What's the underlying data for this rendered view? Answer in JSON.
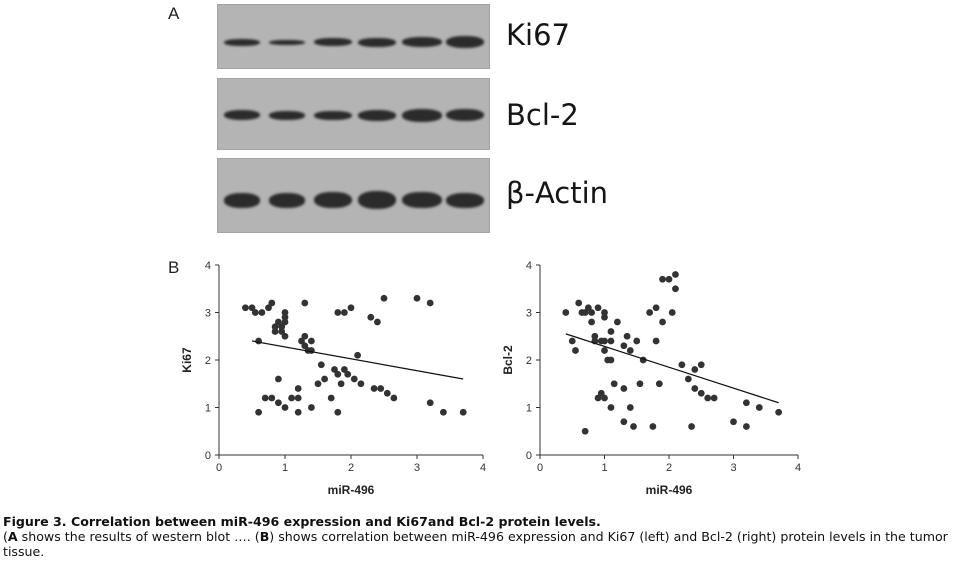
{
  "panel_a_label": "A",
  "panel_b_label": "B",
  "blots": [
    {
      "label": "Ki67"
    },
    {
      "label": "Bcl-2"
    },
    {
      "label": "β-Actin"
    }
  ],
  "caption": {
    "title": "Figure 3. Correlation between miR-496 expression and Ki67and Bcl-2 protein levels.",
    "a_ref": "A",
    "text_1": " shows the results of western blot …. (",
    "b_ref": "B",
    "text_2": ") shows correlation between miR-496 expression and Ki67 (left) and Bcl-2 (right) protein levels in the tumor tissue."
  },
  "chart_data": [
    {
      "type": "scatter",
      "xlabel": "miR-496",
      "ylabel": "Ki67",
      "xlim": [
        0,
        4
      ],
      "ylim": [
        0,
        4
      ],
      "xticks": [
        "0",
        "1",
        "2",
        "3",
        "4"
      ],
      "yticks": [
        "0",
        "1",
        "2",
        "3",
        "4"
      ],
      "points": [
        [
          0.4,
          3.1
        ],
        [
          0.5,
          3.1
        ],
        [
          0.55,
          3.0
        ],
        [
          0.6,
          2.4
        ],
        [
          0.6,
          0.9
        ],
        [
          0.65,
          3.0
        ],
        [
          0.7,
          1.2
        ],
        [
          0.75,
          3.1
        ],
        [
          0.8,
          3.2
        ],
        [
          0.8,
          1.2
        ],
        [
          0.85,
          2.7
        ],
        [
          0.85,
          2.6
        ],
        [
          0.9,
          2.8
        ],
        [
          0.9,
          1.6
        ],
        [
          0.9,
          1.1
        ],
        [
          0.95,
          2.7
        ],
        [
          0.95,
          2.6
        ],
        [
          1.0,
          3.0
        ],
        [
          1.0,
          2.9
        ],
        [
          1.0,
          2.8
        ],
        [
          1.0,
          2.5
        ],
        [
          1.0,
          1.0
        ],
        [
          1.1,
          1.2
        ],
        [
          1.2,
          1.4
        ],
        [
          1.2,
          1.2
        ],
        [
          1.2,
          0.9
        ],
        [
          1.25,
          2.4
        ],
        [
          1.3,
          2.5
        ],
        [
          1.3,
          2.3
        ],
        [
          1.3,
          3.2
        ],
        [
          1.35,
          2.2
        ],
        [
          1.4,
          2.4
        ],
        [
          1.4,
          2.2
        ],
        [
          1.4,
          1.0
        ],
        [
          1.5,
          1.5
        ],
        [
          1.55,
          1.9
        ],
        [
          1.6,
          1.6
        ],
        [
          1.7,
          1.2
        ],
        [
          1.75,
          1.8
        ],
        [
          1.8,
          3.0
        ],
        [
          1.8,
          0.9
        ],
        [
          1.8,
          1.7
        ],
        [
          1.85,
          1.5
        ],
        [
          1.9,
          3.0
        ],
        [
          1.9,
          1.8
        ],
        [
          1.95,
          1.7
        ],
        [
          2.0,
          3.1
        ],
        [
          2.05,
          1.6
        ],
        [
          2.1,
          2.1
        ],
        [
          2.15,
          1.5
        ],
        [
          2.3,
          2.9
        ],
        [
          2.35,
          1.4
        ],
        [
          2.4,
          2.8
        ],
        [
          2.45,
          1.4
        ],
        [
          2.5,
          3.3
        ],
        [
          2.55,
          1.3
        ],
        [
          2.65,
          1.2
        ],
        [
          3.0,
          3.3
        ],
        [
          3.2,
          3.2
        ],
        [
          3.2,
          1.1
        ],
        [
          3.4,
          0.9
        ],
        [
          3.7,
          0.9
        ]
      ],
      "fit": [
        [
          0.5,
          2.4
        ],
        [
          3.7,
          1.6
        ]
      ]
    },
    {
      "type": "scatter",
      "xlabel": "miR-496",
      "ylabel": "Bcl-2",
      "xlim": [
        0,
        4
      ],
      "ylim": [
        0,
        4
      ],
      "xticks": [
        "0",
        "1",
        "2",
        "3",
        "4"
      ],
      "yticks": [
        "0",
        "1",
        "2",
        "3",
        "4"
      ],
      "points": [
        [
          0.4,
          3.0
        ],
        [
          0.5,
          2.4
        ],
        [
          0.55,
          2.2
        ],
        [
          0.6,
          3.2
        ],
        [
          0.65,
          3.0
        ],
        [
          0.7,
          3.0
        ],
        [
          0.7,
          0.5
        ],
        [
          0.75,
          3.1
        ],
        [
          0.8,
          3.0
        ],
        [
          0.8,
          2.8
        ],
        [
          0.85,
          2.5
        ],
        [
          0.85,
          2.4
        ],
        [
          0.9,
          3.1
        ],
        [
          0.9,
          1.2
        ],
        [
          0.95,
          2.4
        ],
        [
          0.95,
          1.3
        ],
        [
          1.0,
          3.0
        ],
        [
          1.0,
          2.9
        ],
        [
          1.0,
          2.4
        ],
        [
          1.0,
          2.2
        ],
        [
          1.0,
          1.2
        ],
        [
          1.05,
          2.0
        ],
        [
          1.1,
          2.6
        ],
        [
          1.1,
          2.4
        ],
        [
          1.1,
          2.0
        ],
        [
          1.1,
          1.0
        ],
        [
          1.15,
          1.5
        ],
        [
          1.2,
          2.8
        ],
        [
          1.3,
          2.3
        ],
        [
          1.3,
          1.4
        ],
        [
          1.3,
          0.7
        ],
        [
          1.35,
          2.5
        ],
        [
          1.4,
          2.2
        ],
        [
          1.4,
          1.0
        ],
        [
          1.45,
          0.6
        ],
        [
          1.5,
          2.4
        ],
        [
          1.55,
          1.5
        ],
        [
          1.6,
          2.0
        ],
        [
          1.7,
          3.0
        ],
        [
          1.75,
          0.6
        ],
        [
          1.8,
          3.1
        ],
        [
          1.8,
          2.4
        ],
        [
          1.85,
          1.5
        ],
        [
          1.9,
          3.7
        ],
        [
          1.9,
          2.8
        ],
        [
          2.0,
          3.7
        ],
        [
          2.05,
          3.0
        ],
        [
          2.1,
          3.8
        ],
        [
          2.1,
          3.5
        ],
        [
          2.2,
          1.9
        ],
        [
          2.3,
          1.6
        ],
        [
          2.35,
          0.6
        ],
        [
          2.4,
          1.8
        ],
        [
          2.4,
          1.4
        ],
        [
          2.5,
          1.9
        ],
        [
          2.5,
          1.3
        ],
        [
          2.6,
          1.2
        ],
        [
          2.7,
          1.2
        ],
        [
          3.0,
          0.7
        ],
        [
          3.2,
          1.1
        ],
        [
          3.2,
          0.6
        ],
        [
          3.4,
          1.0
        ],
        [
          3.7,
          0.9
        ]
      ],
      "fit": [
        [
          0.4,
          2.55
        ],
        [
          3.7,
          1.1
        ]
      ]
    }
  ],
  "colors": {
    "blot_background": "#b4b4b4",
    "band": "#2b2b2b",
    "marker": "#333333"
  }
}
